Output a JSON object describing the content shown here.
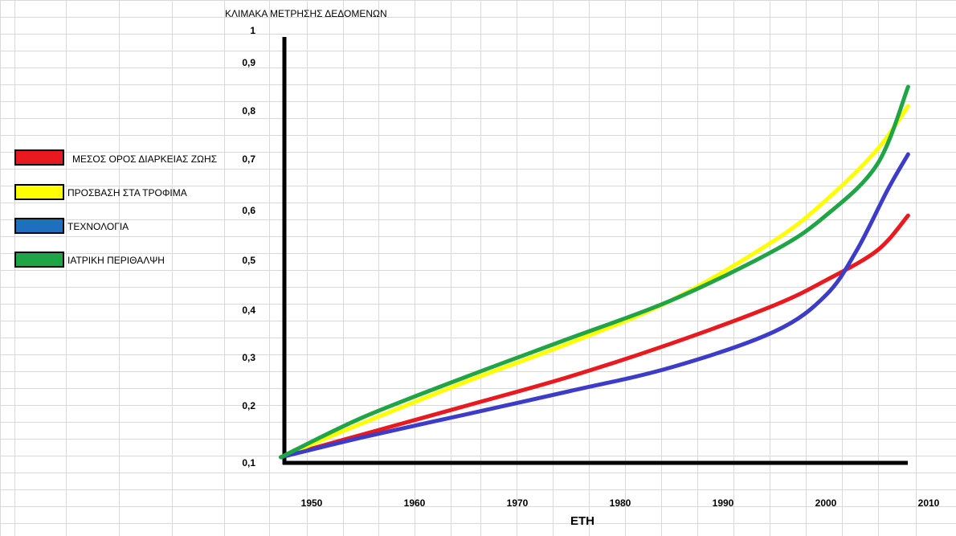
{
  "chart_data": {
    "type": "line",
    "title": "ΚΛΙΜΑΚΑ ΜΕΤΡΗΣΗΣ ΔΕΔΟΜΕΝΩΝ",
    "xlabel": "ΕΤΗ",
    "ylabel": "",
    "x_ticks": [
      "1950",
      "1960",
      "1970",
      "1980",
      "1990",
      "2000",
      "2010"
    ],
    "y_ticks": [
      "1",
      "0,9",
      "0,8",
      "0,7",
      "0,6",
      "0,5",
      "0,4",
      "0,3",
      "0,2",
      "0,1"
    ],
    "ylim": [
      0.1,
      1
    ],
    "xlim": [
      1945,
      2010
    ],
    "grid": true,
    "legend_position": "left",
    "series": [
      {
        "name": "ΜΕΣΟΣ ΟΡΟΣ ΔΙΑΡΚΕΙΑΣ ΖΩΗΣ",
        "color": "#e8191f",
        "x": [
          1947,
          1955,
          1965,
          1975,
          1985,
          1995,
          2000,
          2005,
          2008
        ],
        "y": [
          0.11,
          0.15,
          0.2,
          0.26,
          0.33,
          0.41,
          0.46,
          0.52,
          0.59
        ]
      },
      {
        "name": "ΠΡΟΣΒΑΣΗ ΣΤΑ ΤΡΟΦΙΜΑ",
        "color": "#ffff00",
        "x": [
          1947,
          1955,
          1965,
          1975,
          1985,
          1995,
          2000,
          2005,
          2008
        ],
        "y": [
          0.11,
          0.17,
          0.25,
          0.33,
          0.42,
          0.54,
          0.62,
          0.72,
          0.81
        ]
      },
      {
        "name": "ΤΕΧΝΟΛΟΓΙΑ",
        "color": "#3c3cc8",
        "x": [
          1947,
          1955,
          1965,
          1975,
          1985,
          1995,
          2000,
          2003,
          2006,
          2008
        ],
        "y": [
          0.11,
          0.145,
          0.185,
          0.23,
          0.28,
          0.355,
          0.43,
          0.52,
          0.64,
          0.71
        ]
      },
      {
        "name": "ΙΑΤΡΙΚΗ ΠΕΡΙΘΑΛΨΗ",
        "color": "#1fa546",
        "x": [
          1947,
          1955,
          1965,
          1975,
          1985,
          1995,
          2000,
          2005,
          2008
        ],
        "y": [
          0.11,
          0.18,
          0.26,
          0.34,
          0.42,
          0.52,
          0.59,
          0.69,
          0.85
        ]
      }
    ]
  },
  "legend": {
    "items": [
      {
        "label": "ΜΕΣΟΣ ΟΡΟΣ ΔΙΑΡΚΕΙΑΣ ΖΩΗΣ",
        "color": "#e8191f"
      },
      {
        "label": "ΠΡΟΣΒΑΣΗ ΣΤΑ ΤΡΟΦΙΜΑ",
        "color": "#ffff00"
      },
      {
        "label": "ΤΕΧΝΟΛΟΓΙΑ",
        "color": "#1f6fbf"
      },
      {
        "label": "ΙΑΤΡΙΚΗ ΠΕΡΙΘΑΛΨΗ",
        "color": "#1fa546"
      }
    ]
  },
  "colors": {
    "gridline": "#d9d9d9",
    "axis": "#000000",
    "background": "#ffffff"
  }
}
